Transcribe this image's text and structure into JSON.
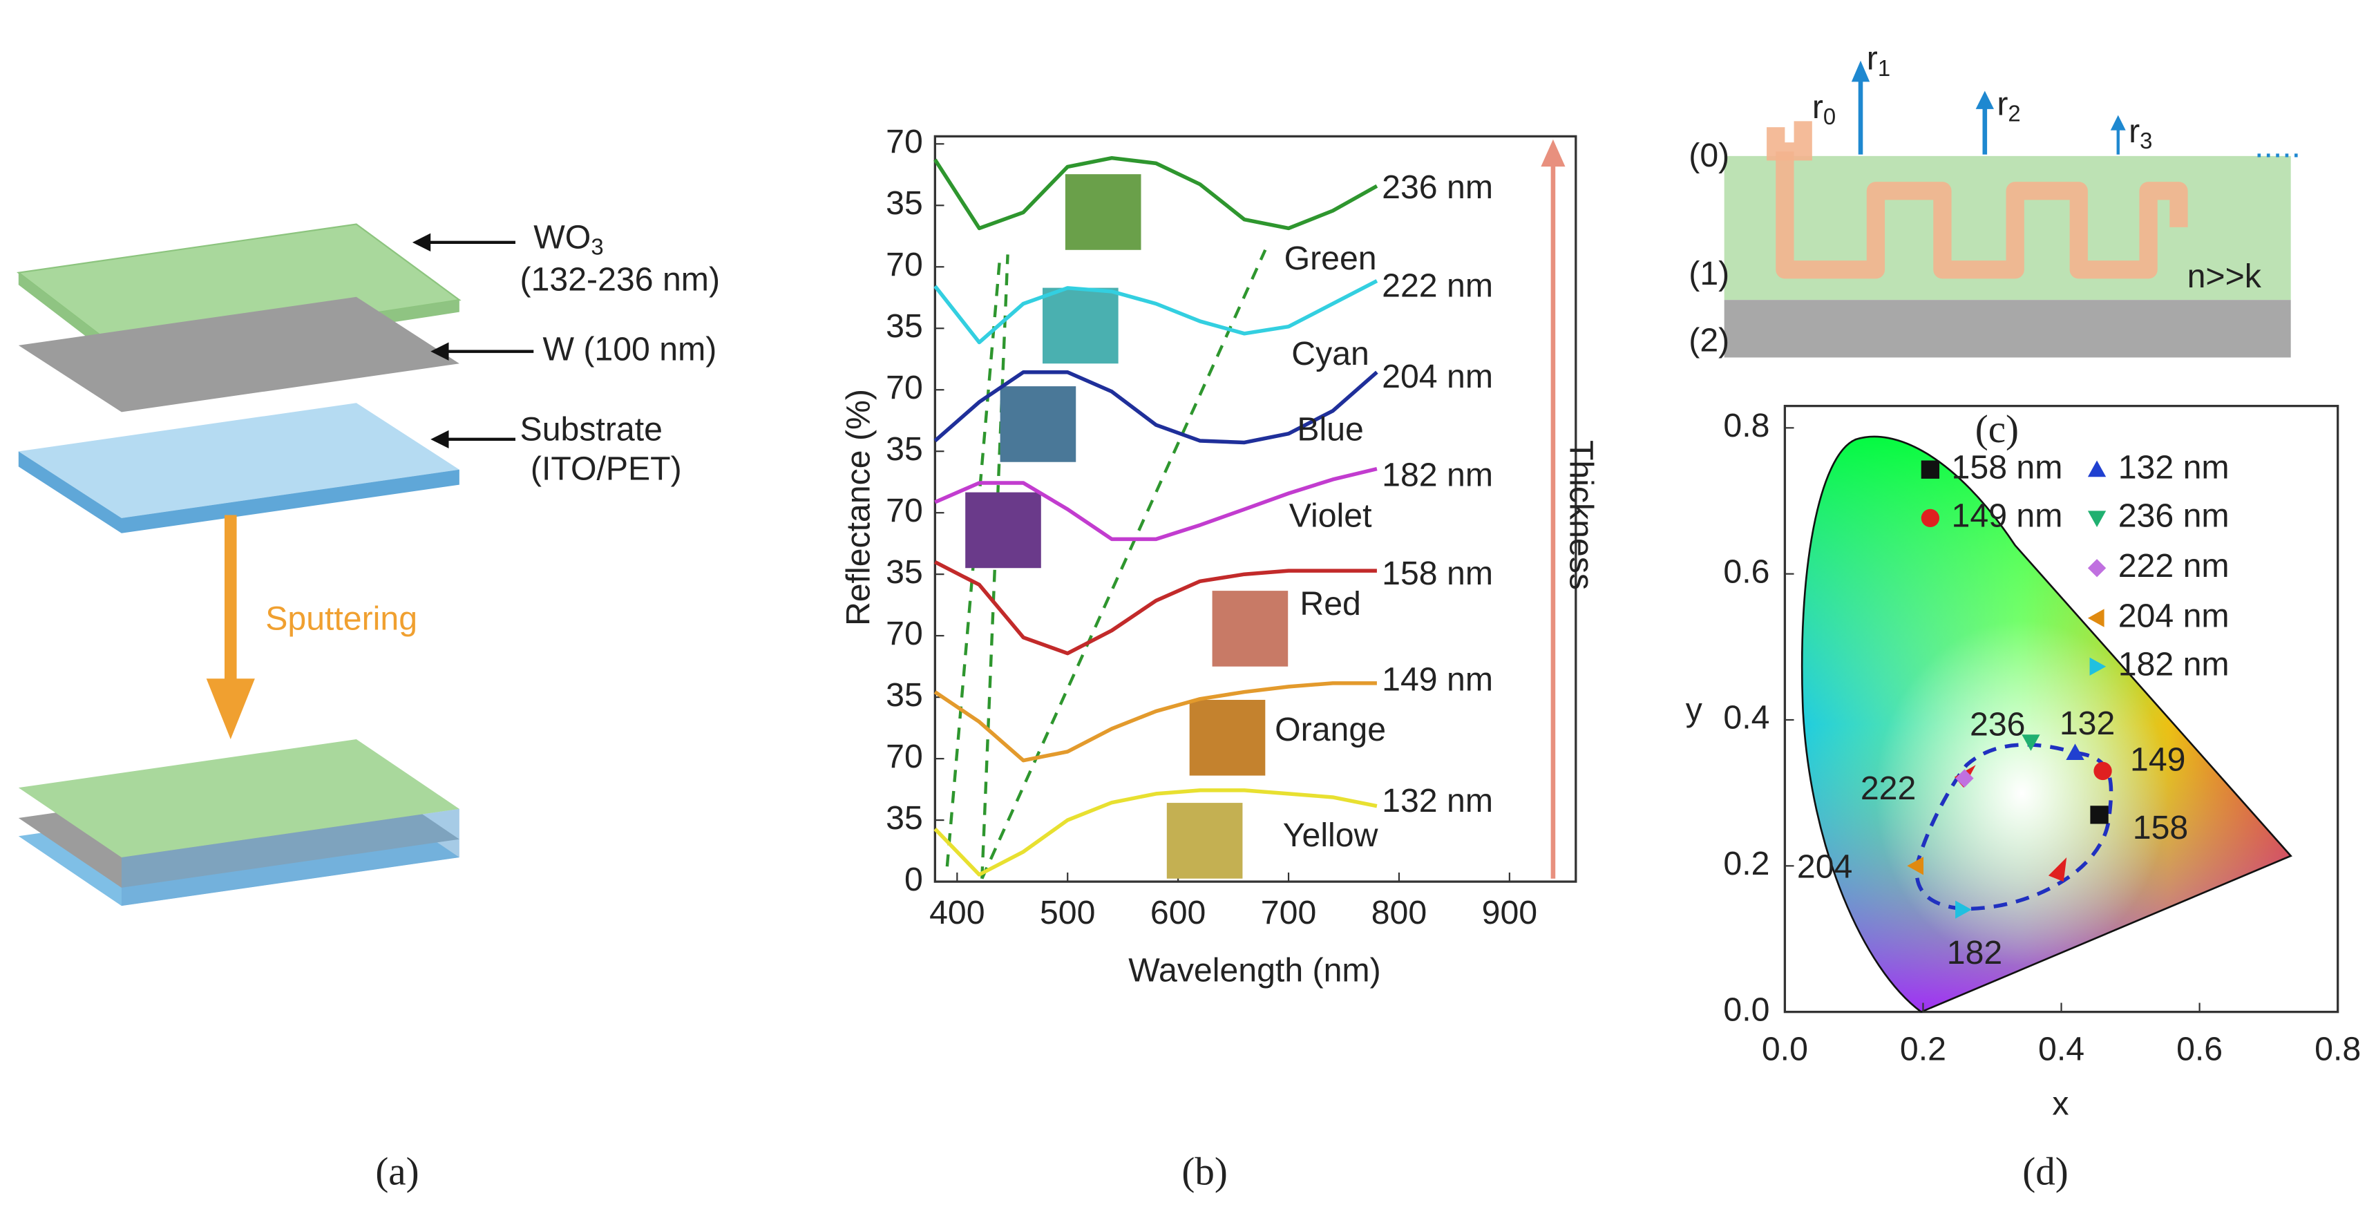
{
  "panel_a": {
    "layer_top": {
      "base": "WO",
      "sub": "3"
    },
    "layer_top_range": "(132-236 nm)",
    "layer_mid": "W (100 nm)",
    "layer_bottom": "Substrate",
    "layer_bottom_detail": "(ITO/PET)",
    "process": "Sputtering",
    "caption": "(a)"
  },
  "panel_c": {
    "rays": [
      {
        "base": "r",
        "sub": "0"
      },
      {
        "base": "r",
        "sub": "1"
      },
      {
        "base": "r",
        "sub": "2"
      },
      {
        "base": "r",
        "sub": "3"
      }
    ],
    "ellipsis": ".....",
    "layers": [
      "(0)",
      "(1)",
      "(2)"
    ],
    "condition": "n>>k",
    "caption": "(c)"
  },
  "captions": {
    "b": "(b)",
    "d": "(d)"
  },
  "chart_data": [
    {
      "type": "line",
      "xlabel": "Wavelength (nm)",
      "ylabel": "Reflectance (%)",
      "annotation": "Thickness",
      "x": [
        380,
        420,
        460,
        500,
        540,
        580,
        620,
        660,
        700,
        740,
        780
      ],
      "xlim": [
        380,
        960
      ],
      "xticks": [
        400,
        500,
        600,
        700,
        800,
        900
      ],
      "ylim": [
        0,
        420
      ],
      "yticks": [
        0,
        35,
        70,
        {
          "value": 105,
          "label": "35"
        },
        {
          "value": 140,
          "label": "70"
        },
        {
          "value": 175,
          "label": "35"
        },
        {
          "value": 210,
          "label": "70"
        },
        {
          "value": 245,
          "label": "35"
        },
        {
          "value": 280,
          "label": "70"
        },
        {
          "value": 315,
          "label": "35"
        },
        {
          "value": 350,
          "label": "70"
        },
        {
          "value": 385,
          "label": "35"
        },
        {
          "value": 420,
          "label": "70"
        }
      ],
      "series": [
        {
          "name": "236 nm",
          "color_name": "Green",
          "color": "#2e962e",
          "values": [
            411,
            372,
            381,
            407,
            412,
            409,
            397,
            377,
            372,
            382,
            396
          ]
        },
        {
          "name": "222 nm",
          "color_name": "Cyan",
          "color": "#33cfe0",
          "values": [
            339,
            307,
            329,
            338,
            336,
            329,
            319,
            312,
            316,
            329,
            342
          ]
        },
        {
          "name": "204 nm",
          "color_name": "Blue",
          "color": "#1f2f9a",
          "values": [
            251,
            273,
            290,
            290,
            279,
            260,
            251,
            250,
            255,
            268,
            290
          ]
        },
        {
          "name": "182 nm",
          "color_name": "Violet",
          "color": "#c23ccf",
          "values": [
            216,
            227,
            227,
            212,
            195,
            195,
            203,
            212,
            221,
            229,
            235
          ]
        },
        {
          "name": "158 nm",
          "color_name": "Red",
          "color": "#c22a2a",
          "values": [
            182,
            169,
            139,
            130,
            143,
            160,
            171,
            175,
            177,
            177,
            177
          ]
        },
        {
          "name": "149 nm",
          "color_name": "Orange",
          "color": "#e39a2c",
          "values": [
            108,
            91,
            69,
            74,
            87,
            97,
            104,
            108,
            111,
            113,
            113
          ]
        },
        {
          "name": "132 nm",
          "color_name": "Yellow",
          "color": "#e8e030",
          "values": [
            30,
            4,
            17,
            35,
            45,
            50,
            52,
            52,
            50,
            48,
            43
          ]
        }
      ]
    },
    {
      "type": "scatter",
      "xlabel": "x",
      "ylabel": "y",
      "xlim": [
        0,
        0.8
      ],
      "xticks": [
        {
          "value": 0,
          "label": "0.0"
        },
        0.2,
        0.4,
        0.6,
        0.8
      ],
      "ylim": [
        0,
        0.83
      ],
      "yticks": [
        {
          "value": 0,
          "label": "0.0"
        },
        0.2,
        0.4,
        0.6,
        0.8
      ],
      "series": [
        {
          "name": "158 nm",
          "color": "#111111",
          "marker": "square",
          "x": [
            0.455
          ],
          "values": [
            0.27
          ],
          "labels": [
            "158"
          ]
        },
        {
          "name": "149 nm",
          "color": "#e02020",
          "marker": "circle",
          "x": [
            0.46
          ],
          "values": [
            0.33
          ],
          "labels": [
            "149"
          ]
        },
        {
          "name": "132 nm",
          "color": "#2040d0",
          "marker": "triangle-up",
          "x": [
            0.42
          ],
          "values": [
            0.355
          ],
          "labels": [
            "132"
          ]
        },
        {
          "name": "236 nm",
          "color": "#20b070",
          "marker": "triangle-down",
          "x": [
            0.356
          ],
          "values": [
            0.37
          ],
          "labels": [
            "236"
          ]
        },
        {
          "name": "222 nm",
          "color": "#c070e0",
          "marker": "diamond",
          "x": [
            0.26
          ],
          "values": [
            0.32
          ],
          "labels": [
            "222"
          ]
        },
        {
          "name": "204 nm",
          "color": "#e08a10",
          "marker": "triangle-left",
          "x": [
            0.19
          ],
          "values": [
            0.2
          ],
          "labels": [
            "204"
          ]
        },
        {
          "name": "182 nm",
          "color": "#20c0e0",
          "marker": "triangle-right",
          "x": [
            0.257
          ],
          "values": [
            0.14
          ],
          "labels": [
            "182"
          ]
        }
      ]
    }
  ]
}
